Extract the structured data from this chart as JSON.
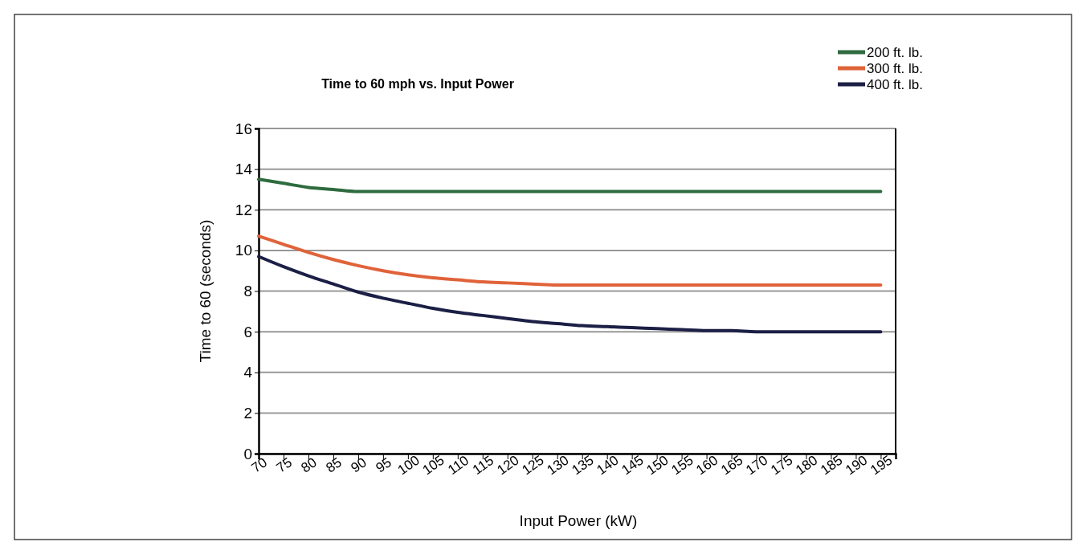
{
  "chart_data": {
    "type": "line",
    "title": "Time to 60 mph vs. Input Power",
    "xlabel": "Input Power (kW)",
    "ylabel": "Time to 60 (seconds)",
    "x": [
      70,
      75,
      80,
      85,
      90,
      95,
      100,
      105,
      110,
      115,
      120,
      125,
      130,
      135,
      140,
      145,
      150,
      155,
      160,
      165,
      170,
      175,
      180,
      185,
      190,
      195
    ],
    "xlim": [
      70,
      198
    ],
    "xticks": [
      70,
      75,
      80,
      85,
      90,
      95,
      100,
      105,
      110,
      115,
      120,
      125,
      130,
      135,
      140,
      145,
      150,
      155,
      160,
      165,
      170,
      175,
      180,
      185,
      190,
      195
    ],
    "ylim": [
      0,
      16
    ],
    "yticks": [
      0,
      2,
      4,
      6,
      8,
      10,
      12,
      14,
      16
    ],
    "grid": "y",
    "legend": "top right",
    "series": [
      {
        "name": "200 ft. lb.",
        "color": "#2e6b3e",
        "values": [
          13.5,
          13.3,
          13.1,
          13.0,
          12.9,
          12.9,
          12.9,
          12.9,
          12.9,
          12.9,
          12.9,
          12.9,
          12.9,
          12.9,
          12.9,
          12.9,
          12.9,
          12.9,
          12.9,
          12.9,
          12.9,
          12.9,
          12.9,
          12.9,
          12.9,
          12.9
        ]
      },
      {
        "name": "300 ft. lb.",
        "color": "#e0633a",
        "values": [
          10.7,
          10.3,
          9.9,
          9.55,
          9.25,
          9.0,
          8.8,
          8.65,
          8.55,
          8.45,
          8.4,
          8.35,
          8.3,
          8.3,
          8.3,
          8.3,
          8.3,
          8.3,
          8.3,
          8.3,
          8.3,
          8.3,
          8.3,
          8.3,
          8.3,
          8.3
        ]
      },
      {
        "name": "400 ft. lb.",
        "color": "#1c1f45",
        "values": [
          9.7,
          9.2,
          8.75,
          8.35,
          7.95,
          7.65,
          7.4,
          7.15,
          6.95,
          6.8,
          6.65,
          6.5,
          6.4,
          6.3,
          6.25,
          6.2,
          6.15,
          6.1,
          6.05,
          6.05,
          6.0,
          6.0,
          6.0,
          6.0,
          6.0,
          6.0
        ]
      }
    ]
  }
}
